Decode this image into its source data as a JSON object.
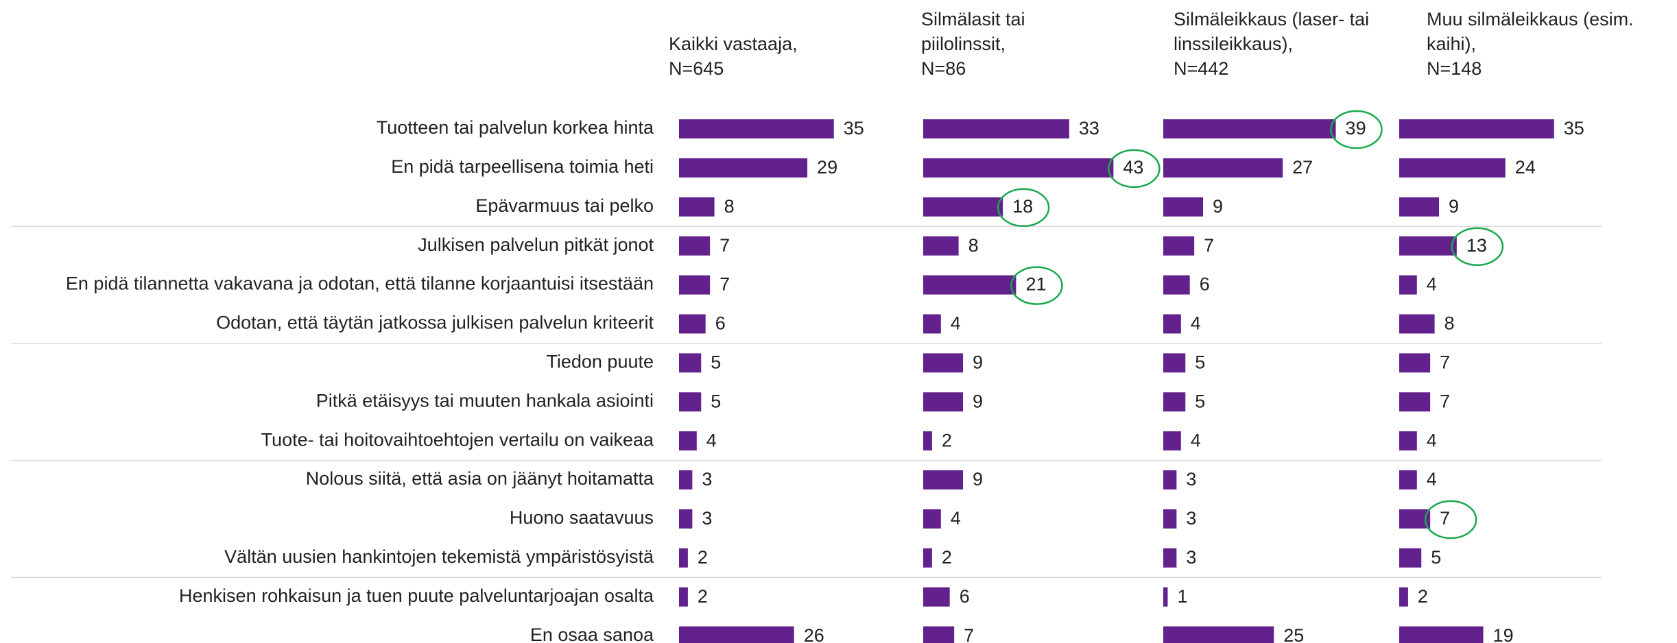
{
  "chart_data": {
    "type": "bar",
    "orientation": "horizontal",
    "categories": [
      "Tuotteen tai palvelun korkea hinta",
      "En pidä tarpeellisena toimia heti",
      "Epävarmuus tai pelko",
      "Julkisen palvelun pitkät jonot",
      "En pidä tilannetta vakavana ja odotan, että tilanne korjaantuisi itsestään",
      "Odotan, että täytän jatkossa julkisen palvelun kriteerit",
      "Tiedon puute",
      "Pitkä etäisyys tai muuten hankala asiointi",
      "Tuote- tai hoitovaihtoehtojen vertailu on vaikeaa",
      "Nolous siitä, että asia on jäänyt hoitamatta",
      "Huono saatavuus",
      "Vältän uusien hankintojen tekemistä ympäristösyistä",
      "Henkisen rohkaisun ja tuen puute palveluntarjoajan osalta",
      "En osaa sanoa"
    ],
    "series": [
      {
        "name": "Kaikki vastaaja,\nN=645",
        "color": "#62218c",
        "values": [
          35,
          29,
          8,
          7,
          7,
          6,
          5,
          5,
          4,
          3,
          3,
          2,
          2,
          26
        ],
        "highlighted": []
      },
      {
        "name": "Silmälasit tai\npiilolinssit,\nN=86",
        "color": "#62218c",
        "values": [
          33,
          43,
          18,
          8,
          21,
          4,
          9,
          9,
          2,
          9,
          4,
          2,
          6,
          7
        ],
        "highlighted": [
          1,
          2,
          4
        ]
      },
      {
        "name": "Silmäleikkaus (laser- tai\nlinssileikkaus),\nN=442",
        "color": "#62218c",
        "values": [
          39,
          27,
          9,
          7,
          6,
          4,
          5,
          5,
          4,
          3,
          3,
          3,
          1,
          25
        ],
        "highlighted": [
          0
        ]
      },
      {
        "name": "Muu silmäleikkaus (esim.\nkaihi),\nN=148",
        "color": "#62218c",
        "values": [
          35,
          24,
          9,
          13,
          4,
          8,
          7,
          7,
          4,
          4,
          7,
          5,
          2,
          19
        ],
        "highlighted": [
          3,
          10
        ]
      }
    ],
    "highlight_color": "#1aa84e"
  }
}
